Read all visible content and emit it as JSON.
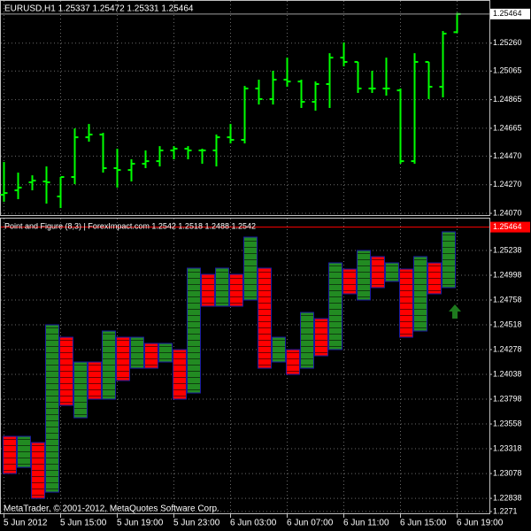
{
  "chart_data": [
    {
      "type": "ohlc",
      "title": "EURUSD,H1  1.25337 1.25472 1.25331 1.25464",
      "color": "#00ff00",
      "categories": [
        "5 Jun 2012",
        null,
        null,
        null,
        "5 Jun 15:00",
        null,
        null,
        null,
        "5 Jun 19:00",
        null,
        null,
        null,
        "5 Jun 23:00",
        null,
        null,
        null,
        "6 Jun 03:00",
        null,
        null,
        null,
        "6 Jun 07:00",
        null,
        null,
        null,
        "6 Jun 11:00",
        null,
        null,
        null,
        "6 Jun 15:00",
        null,
        null,
        null,
        "6 Jun 19:00"
      ],
      "open": [
        1.242,
        1.24231,
        1.24287,
        1.24293,
        1.24188,
        1.24324,
        1.24602,
        1.24621,
        1.24386,
        1.24373,
        1.24417,
        1.24435,
        1.2451,
        1.24522,
        1.2451,
        1.2451,
        1.24602,
        1.24584,
        1.24943,
        1.24869,
        1.25005,
        1.24992,
        1.2485,
        1.24974,
        1.25159,
        1.25129,
        1.24943,
        1.24943,
        1.2493,
        1.24435,
        1.25129,
        1.24955,
        1.25337
      ],
      "high": [
        1.24429,
        1.24355,
        1.24336,
        1.24398,
        1.24324,
        1.24664,
        1.24695,
        1.24633,
        1.24522,
        1.24448,
        1.2451,
        1.2454,
        1.2454,
        1.2454,
        1.24522,
        1.24621,
        1.24695,
        1.24961,
        1.25005,
        1.25067,
        1.25159,
        1.25005,
        1.24992,
        1.2519,
        1.25265,
        1.25129,
        1.25067,
        1.25159,
        1.24943,
        1.2519,
        1.25129,
        1.25345,
        1.25472
      ],
      "low": [
        1.24151,
        1.24169,
        1.24231,
        1.24138,
        1.24107,
        1.24274,
        1.24571,
        1.24355,
        1.2425,
        1.24293,
        1.24386,
        1.24398,
        1.24448,
        1.24448,
        1.24417,
        1.24398,
        1.24559,
        1.24559,
        1.24831,
        1.24831,
        1.24955,
        1.24807,
        1.24788,
        1.24807,
        1.25098,
        1.24912,
        1.24912,
        1.24893,
        1.24417,
        1.24417,
        1.24869,
        1.24881,
        1.25331
      ],
      "close": [
        1.24212,
        1.2425,
        1.24299,
        1.24287,
        1.24324,
        1.24602,
        1.24621,
        1.24386,
        1.24373,
        1.24417,
        1.24435,
        1.2451,
        1.24522,
        1.2451,
        1.2451,
        1.24602,
        1.24584,
        1.24943,
        1.24869,
        1.25005,
        1.24992,
        1.2485,
        1.24974,
        1.25159,
        1.25129,
        1.24943,
        1.24943,
        1.24943,
        1.24435,
        1.25129,
        1.24955,
        1.25327,
        1.25464
      ],
      "ylim": [
        1.24058,
        1.25562
      ],
      "yticks": [
        {
          "value": 1.2407,
          "label": "1.24070"
        },
        {
          "value": 1.2427,
          "label": "1.24270"
        },
        {
          "value": 1.2447,
          "label": "1.24470"
        },
        1.24665,
        1.24865,
        1.25065,
        {
          "value": 1.2526,
          "label": "1.25260"
        }
      ],
      "current_price": 1.25464,
      "grid": true
    },
    {
      "type": "pnf",
      "title": "Point and Figure (8,3) | ForexImpact.com 1.2542 1.2518 1.2488 1.2542",
      "high": [
        1.23438,
        1.23438,
        1.23378,
        1.24518,
        1.24398,
        1.24158,
        1.24158,
        1.24458,
        1.24398,
        1.24398,
        1.24338,
        1.24338,
        1.24278,
        1.25067,
        1.25007,
        1.25067,
        1.25007,
        1.25367,
        1.25067,
        1.24398,
        1.24278,
        1.24638,
        1.24578,
        1.25118,
        1.25058,
        1.25238,
        1.25178,
        1.25118,
        1.25058,
        1.25178,
        1.25118,
        1.25418
      ],
      "low": [
        1.23078,
        1.23138,
        1.22838,
        1.22898,
        1.23738,
        1.23618,
        1.23798,
        1.23798,
        1.23978,
        1.24098,
        1.24098,
        1.24158,
        1.23798,
        1.23858,
        1.24698,
        1.24698,
        1.24698,
        1.24758,
        1.24098,
        1.24158,
        1.24038,
        1.24098,
        1.24218,
        1.24278,
        1.24818,
        1.24758,
        1.24878,
        1.24938,
        1.24398,
        1.24458,
        1.24818,
        1.24878
      ],
      "colors": [
        "#ff0000",
        "#228b22",
        "#ff0000",
        "#228b22",
        "#ff0000",
        "#228b22",
        "#ff0000",
        "#228b22",
        "#ff0000",
        "#228b22",
        "#ff0000",
        "#228b22",
        "#ff0000",
        "#228b22",
        "#ff0000",
        "#228b22",
        "#ff0000",
        "#228b22",
        "#ff0000",
        "#228b22",
        "#ff0000",
        "#228b22",
        "#ff0000",
        "#228b22",
        "#ff0000",
        "#228b22",
        "#ff0000",
        "#228b22",
        "#ff0000",
        "#228b22",
        "#ff0000",
        "#228b22"
      ],
      "ylim": [
        1.22693,
        1.25555
      ],
      "yticks": [
        1.2271,
        1.22838,
        1.23078,
        1.23318,
        1.23558,
        1.23798,
        1.24038,
        1.24278,
        1.24518,
        1.24758,
        1.24998,
        1.25238
      ],
      "current_price": 1.25464,
      "grid": true
    }
  ],
  "footer": "MetaTrader, © 2001-2012, MetaQuotes Software Corp."
}
